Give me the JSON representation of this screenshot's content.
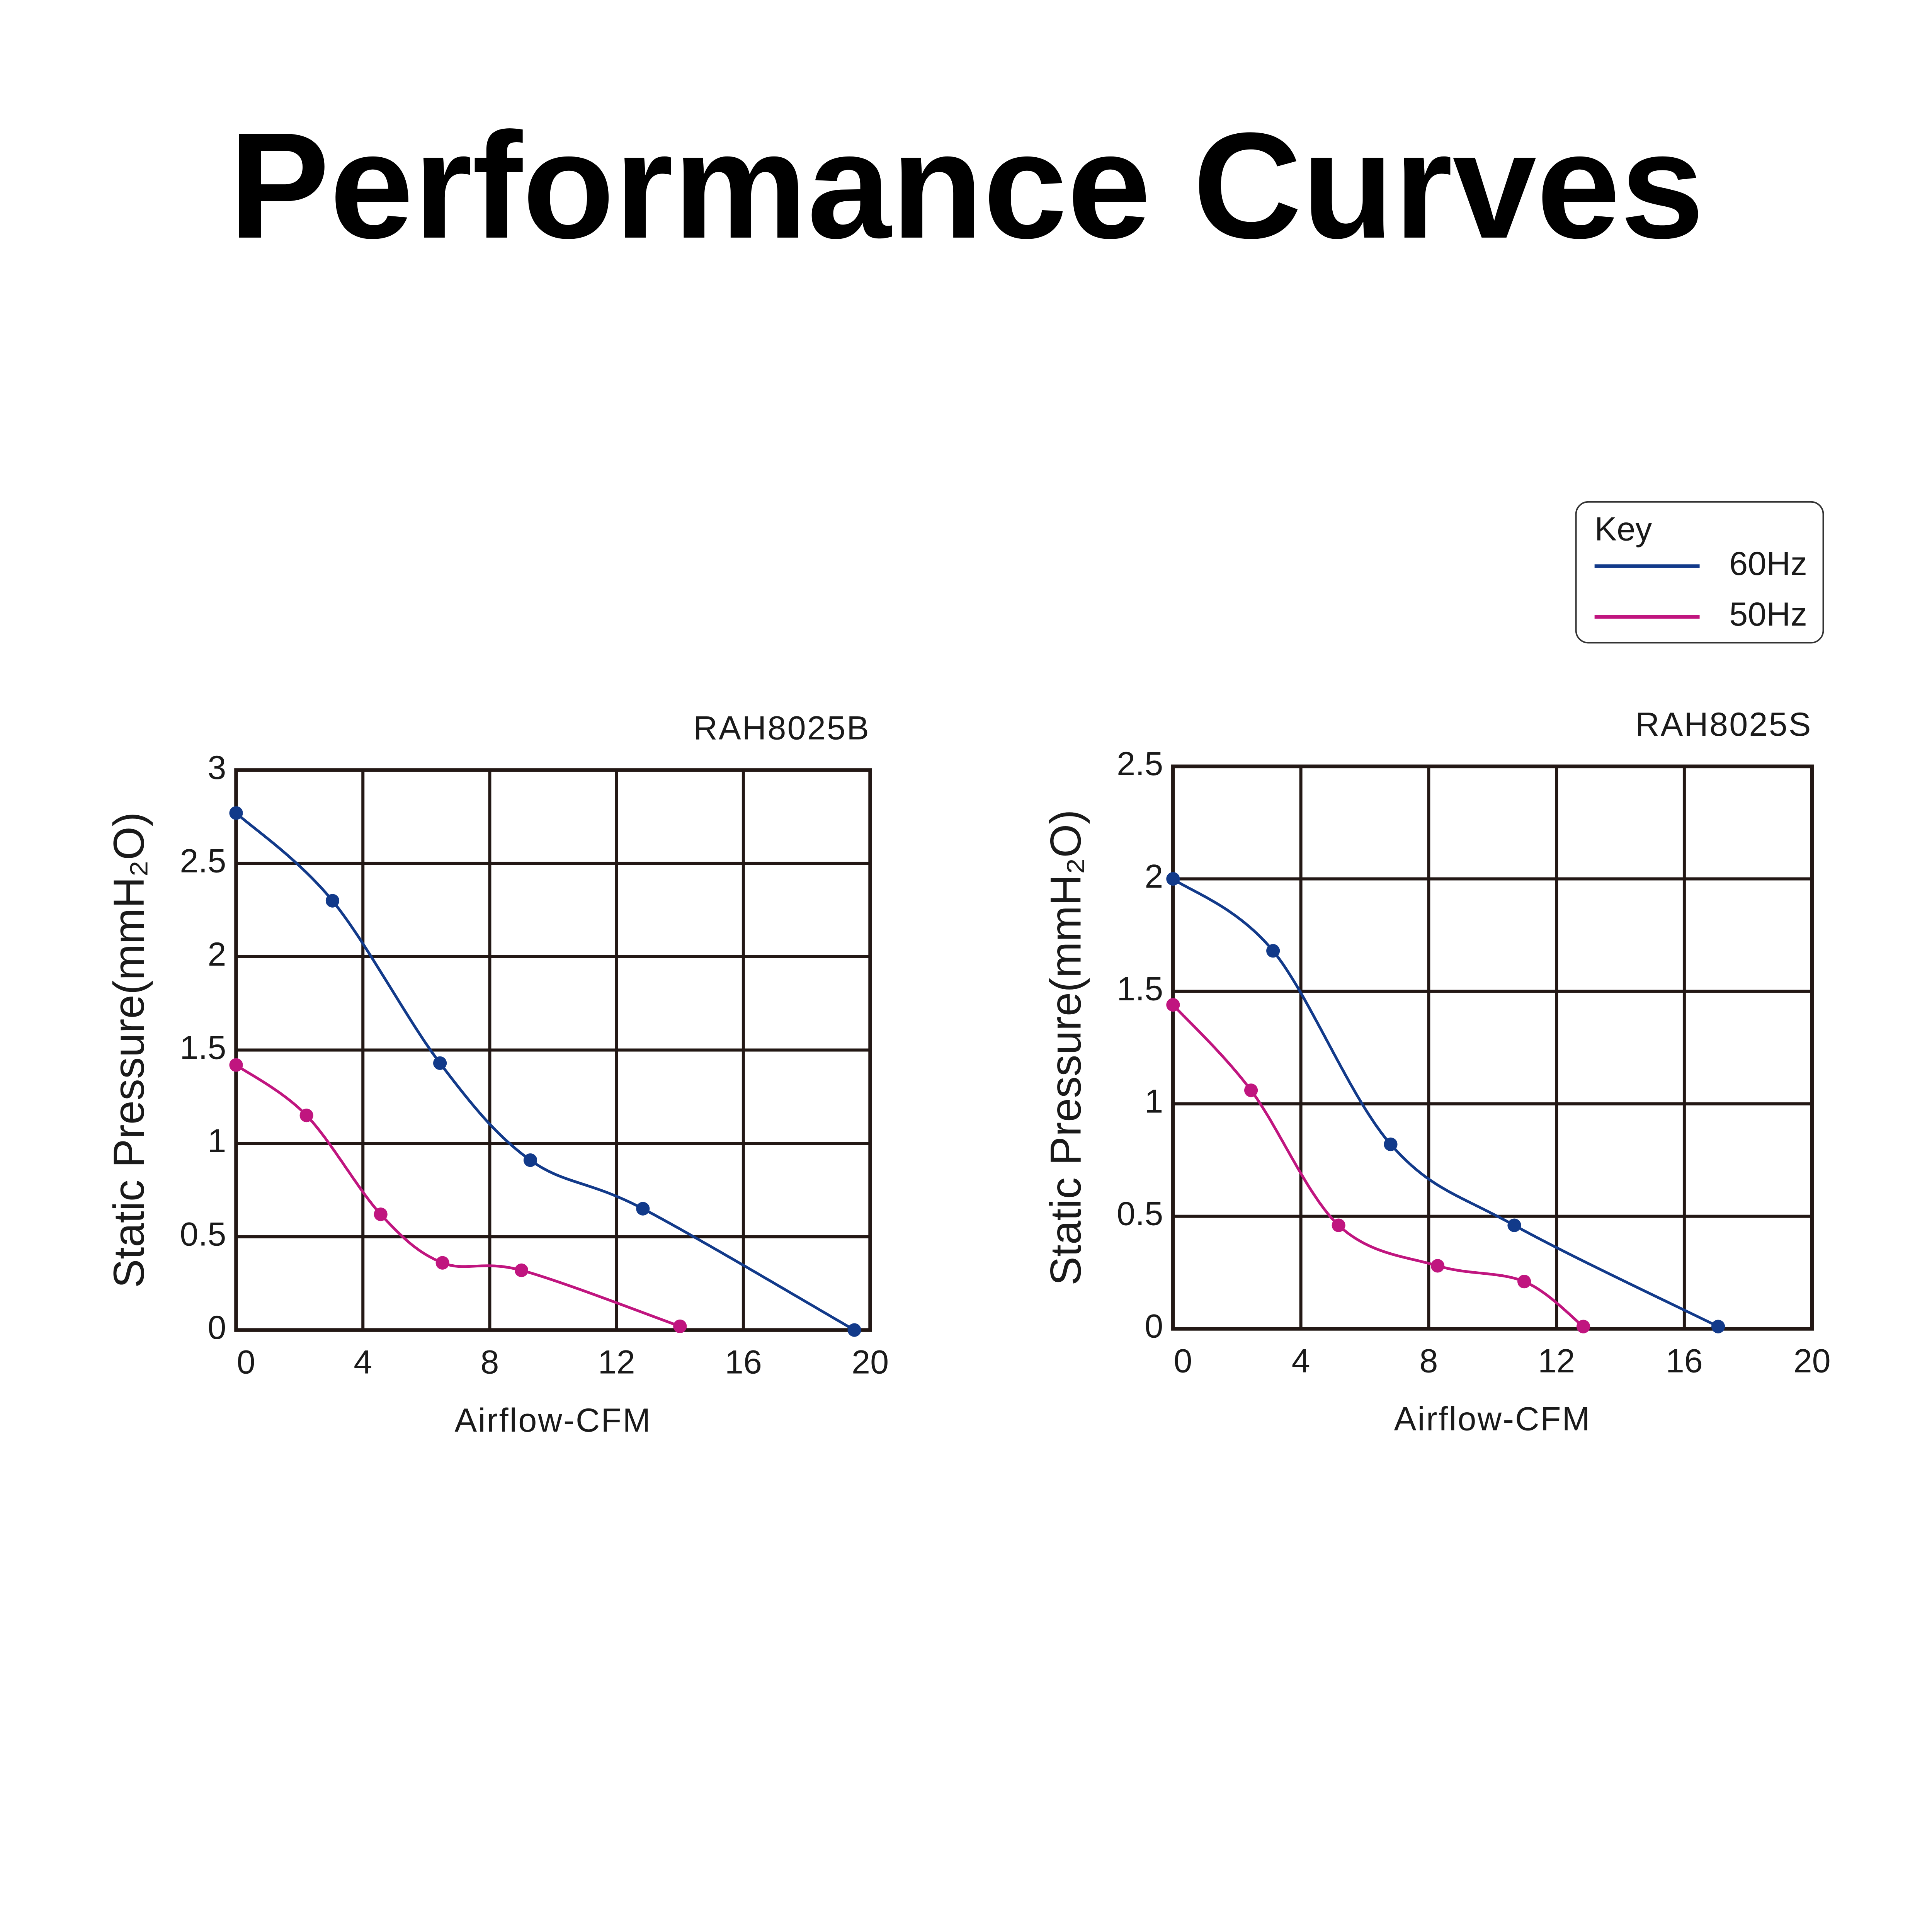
{
  "title": "Performance Curves",
  "legend_title": "Key",
  "chart_data": [
    {
      "type": "line",
      "title": "RAH8025B",
      "x_label": "Airflow-CFM",
      "y_label": "Static Pressure(mmH₂O)",
      "xlim": [
        0,
        20
      ],
      "xticks": [
        0,
        4,
        8,
        12,
        16,
        20
      ],
      "ylim": [
        0,
        3
      ],
      "yticks": [
        0,
        0.5,
        1,
        1.5,
        2,
        2.5,
        3
      ],
      "grid": true,
      "series": [
        {
          "name": "60Hz",
          "color": "#123a8a",
          "x": [
            0,
            3.04,
            6.43,
            9.28,
            12.83,
            19.5
          ],
          "values": [
            2.77,
            2.3,
            1.43,
            0.91,
            0.65,
            0
          ]
        },
        {
          "name": "50Hz",
          "color": "#c0157f",
          "x": [
            0,
            2.22,
            4.56,
            6.51,
            9.0,
            14.0
          ],
          "values": [
            1.42,
            1.15,
            0.62,
            0.36,
            0.32,
            0.02
          ]
        }
      ]
    },
    {
      "type": "line",
      "title": "RAH8025S",
      "x_label": "Airflow-CFM",
      "y_label": "Static Pressure(mmH₂O)",
      "xlim": [
        0,
        20
      ],
      "xticks": [
        0,
        4,
        8,
        12,
        16,
        20
      ],
      "ylim": [
        0,
        2.5
      ],
      "yticks": [
        0,
        0.5,
        1,
        1.5,
        2,
        2.5
      ],
      "grid": true,
      "series": [
        {
          "name": "60Hz",
          "color": "#123a8a",
          "x": [
            0,
            3.13,
            6.81,
            10.68,
            17.06
          ],
          "values": [
            2.0,
            1.68,
            0.82,
            0.46,
            0.01
          ]
        },
        {
          "name": "50Hz",
          "color": "#c0157f",
          "x": [
            0,
            2.44,
            5.18,
            8.28,
            10.99,
            12.84
          ],
          "values": [
            1.44,
            1.06,
            0.46,
            0.28,
            0.21,
            0.01
          ]
        }
      ]
    }
  ]
}
